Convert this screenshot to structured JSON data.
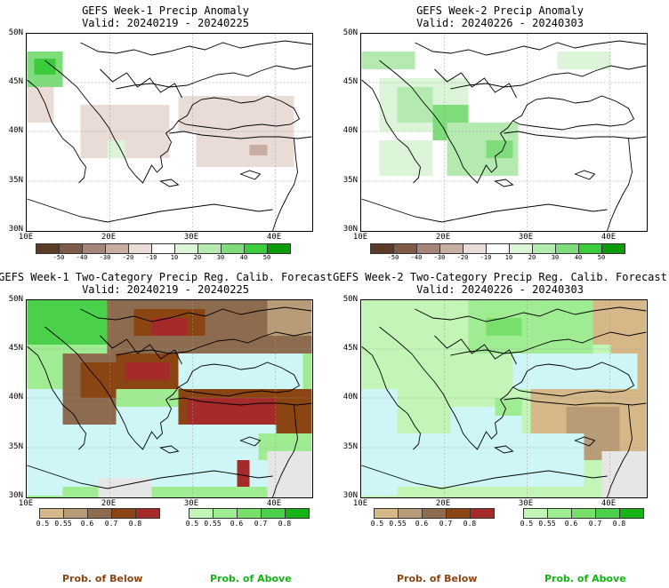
{
  "panels": [
    {
      "title": "GEFS Week-1 Precip Anomaly",
      "valid": "Valid: 20240219 - 20240225"
    },
    {
      "title": "GEFS Week-2 Precip Anomaly",
      "valid": "Valid: 20240226 - 20240303"
    },
    {
      "title": "GEFS Week-1 Two-Category Precip Reg. Calib. Forecast",
      "valid": "Valid: 20240219 - 20240225"
    },
    {
      "title": "GEFS Week-2 Two-Category Precip Reg. Calib. Forecast",
      "valid": "Valid: 20240226 - 20240303"
    }
  ],
  "axes": {
    "lat_labels": [
      "50N",
      "45N",
      "40N",
      "35N",
      "30N"
    ],
    "lon_labels": [
      "10E",
      "20E",
      "30E",
      "40E"
    ]
  },
  "anomaly_colorbar": {
    "labels": [
      "-50",
      "-40",
      "-30",
      "-20",
      "-10",
      "10",
      "20",
      "30",
      "40",
      "50"
    ],
    "colors": [
      "#5a3a28",
      "#7e5a48",
      "#a5857a",
      "#c9aca2",
      "#e9dbd5",
      "#ffffff",
      "#dcf5d8",
      "#b4eab0",
      "#7edd7a",
      "#3ccb3c",
      "#0a9a0a"
    ]
  },
  "prob_colorbar": {
    "below_labels": [
      "0.5",
      "0.55",
      "0.6",
      "0.7",
      "0.8"
    ],
    "below_colors": [
      "#d6b888",
      "#b89c78",
      "#8d6b4e",
      "#8b4513",
      "#a52a2a"
    ],
    "above_labels": [
      "0.5",
      "0.55",
      "0.6",
      "0.7",
      "0.8"
    ],
    "above_colors": [
      "#c2f5b6",
      "#a0ec92",
      "#78e06a",
      "#4ad04a",
      "#16b216"
    ]
  },
  "footer": {
    "below": "Prob. of Below",
    "above": "Prob. of Above",
    "below_color": "#8b4513",
    "above_color": "#16b216"
  }
}
